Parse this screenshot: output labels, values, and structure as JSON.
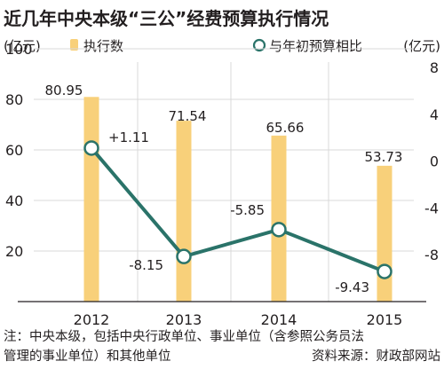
{
  "chart_data": {
    "type": "bar+line",
    "title": "近几年中央本级“三公”经费预算执行情况",
    "categories": [
      "2012",
      "2013",
      "2014",
      "2015"
    ],
    "left_axis": {
      "unit": "(亿元)",
      "ticks": [
        20,
        40,
        60,
        80,
        100
      ],
      "range": [
        0,
        100
      ]
    },
    "right_axis": {
      "unit": "(亿元)",
      "ticks": [
        8,
        4,
        0,
        -4,
        -8
      ],
      "range": [
        -12,
        8
      ]
    },
    "bars": {
      "name": "执行数",
      "color": "#f8d07a",
      "values": [
        80.95,
        71.54,
        65.66,
        53.73
      ],
      "labels": [
        "80.95",
        "71.54",
        "65.66",
        "53.73"
      ]
    },
    "line": {
      "name": "与年初预算相比",
      "color": "#2a7369",
      "values": [
        1.11,
        -8.15,
        -5.85,
        -9.43
      ],
      "labels": [
        "+1.11",
        "-8.15",
        "-5.85",
        "-9.43"
      ]
    },
    "grid": true,
    "legend": "top"
  },
  "notes": {
    "line1": "注：中央本级，包括中央行政单位、事业单位（含参照公务员法",
    "line2": "管理的事业单位）和其他单位",
    "source": "资料来源：财政部网站"
  }
}
